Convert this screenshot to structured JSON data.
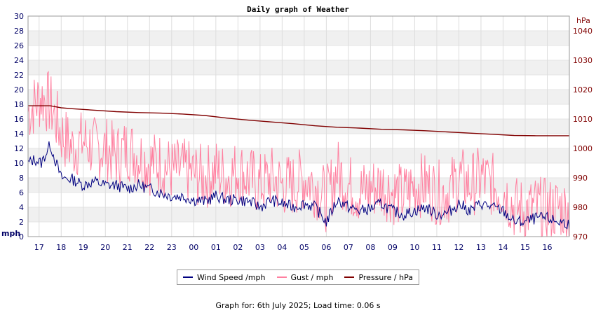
{
  "chart_data": {
    "type": "line",
    "title": "Daily graph of Weather",
    "left_axis": {
      "label": "mph",
      "min": 0,
      "max": 30,
      "ticks": [
        0,
        2,
        4,
        6,
        8,
        10,
        12,
        14,
        16,
        18,
        20,
        22,
        24,
        26,
        28,
        30
      ],
      "color": "#000066"
    },
    "right_axis": {
      "label": "hPa",
      "min": 970,
      "max": 1045,
      "ticks": [
        970,
        980,
        990,
        1000,
        1010,
        1020,
        1030,
        1040
      ],
      "color": "#800000"
    },
    "x_tick_labels": [
      "17",
      "18",
      "19",
      "20",
      "21",
      "22",
      "23",
      "00",
      "01",
      "02",
      "03",
      "04",
      "05",
      "06",
      "07",
      "08",
      "09",
      "10",
      "11",
      "12",
      "13",
      "14",
      "15",
      "16"
    ],
    "x_hours_total": 24.5,
    "series": [
      {
        "name": "Wind Speed /mph",
        "color": "#000080",
        "axis": "left",
        "hours": [
          0,
          0.3,
          0.6,
          1,
          1.5,
          2,
          2.5,
          3,
          3.5,
          4,
          4.5,
          5,
          5.5,
          6,
          6.5,
          7,
          7.5,
          8,
          8.5,
          9,
          9.5,
          10,
          10.5,
          11,
          11.5,
          12,
          12.5,
          13,
          13.5,
          14,
          14.5,
          15,
          15.5,
          16,
          16.5,
          17,
          17.5,
          18,
          18.5,
          19,
          19.5,
          20,
          20.5,
          21,
          21.5,
          22,
          22.5,
          23,
          23.5,
          24,
          24.5
        ],
        "values": [
          10,
          10.5,
          10,
          12.5,
          8,
          7.8,
          7,
          7.5,
          7,
          7,
          6.5,
          7,
          6.5,
          6,
          5.5,
          5.5,
          5,
          4.8,
          5.5,
          5,
          5,
          4.8,
          4,
          5,
          4.5,
          4,
          4.5,
          4,
          2,
          5,
          4,
          3.5,
          3.8,
          4.5,
          3.5,
          3,
          3.5,
          4,
          3,
          3.2,
          4.5,
          3.5,
          4.5,
          4,
          3.5,
          2,
          2,
          2.5,
          2.5,
          2,
          1.8
        ]
      },
      {
        "name": "Gust / mph",
        "color": "#ff80a0",
        "axis": "left",
        "hours": [
          0,
          0.3,
          0.6,
          1,
          1.5,
          2,
          2.5,
          3,
          3.5,
          4,
          4.5,
          5,
          5.5,
          6,
          6.5,
          7,
          7.5,
          8,
          8.5,
          9,
          9.5,
          10,
          10.5,
          11,
          11.5,
          12,
          12.5,
          13,
          13.5,
          14,
          14.5,
          15,
          15.5,
          16,
          16.5,
          17,
          17.5,
          18,
          18.5,
          19,
          19.5,
          20,
          20.5,
          21,
          21.5,
          22,
          22.5,
          23,
          23.5,
          24,
          24.5
        ],
        "values": [
          17,
          18,
          19,
          18,
          14,
          12,
          13,
          12,
          12,
          11,
          12,
          11,
          10,
          10,
          9,
          9,
          8.5,
          8,
          9,
          8,
          9,
          8,
          7,
          8,
          7,
          7,
          8,
          7,
          5,
          9,
          7,
          6,
          6.5,
          7,
          6,
          5.5,
          7,
          7,
          6,
          6,
          8,
          7,
          8,
          7,
          6.5,
          4,
          3.5,
          4,
          3.5,
          4,
          3.5
        ]
      },
      {
        "name": "Pressure / hPa",
        "color": "#800000",
        "axis": "right",
        "hours": [
          0,
          1,
          1.5,
          2,
          3,
          4,
          5,
          6,
          7,
          8,
          9,
          10,
          11,
          12,
          13,
          14,
          15,
          16,
          17,
          18,
          19,
          20,
          21,
          22,
          23,
          24,
          24.5
        ],
        "values": [
          1014.5,
          1014.5,
          1013.8,
          1013.5,
          1013,
          1012.5,
          1012.2,
          1012,
          1011.7,
          1011.2,
          1010.3,
          1009.6,
          1009,
          1008.4,
          1007.7,
          1007.2,
          1006.9,
          1006.5,
          1006.3,
          1006,
          1005.6,
          1005.2,
          1004.8,
          1004.4,
          1004.3,
          1004.3,
          1004.3
        ]
      }
    ]
  },
  "legend": [
    {
      "label": "Wind Speed /mph",
      "color": "#000080"
    },
    {
      "label": "Gust / mph",
      "color": "#ff80a0"
    },
    {
      "label": "Pressure / hPa",
      "color": "#800000"
    }
  ],
  "footer": "Graph for: 6th July 2025; Load time: 0.06 s"
}
